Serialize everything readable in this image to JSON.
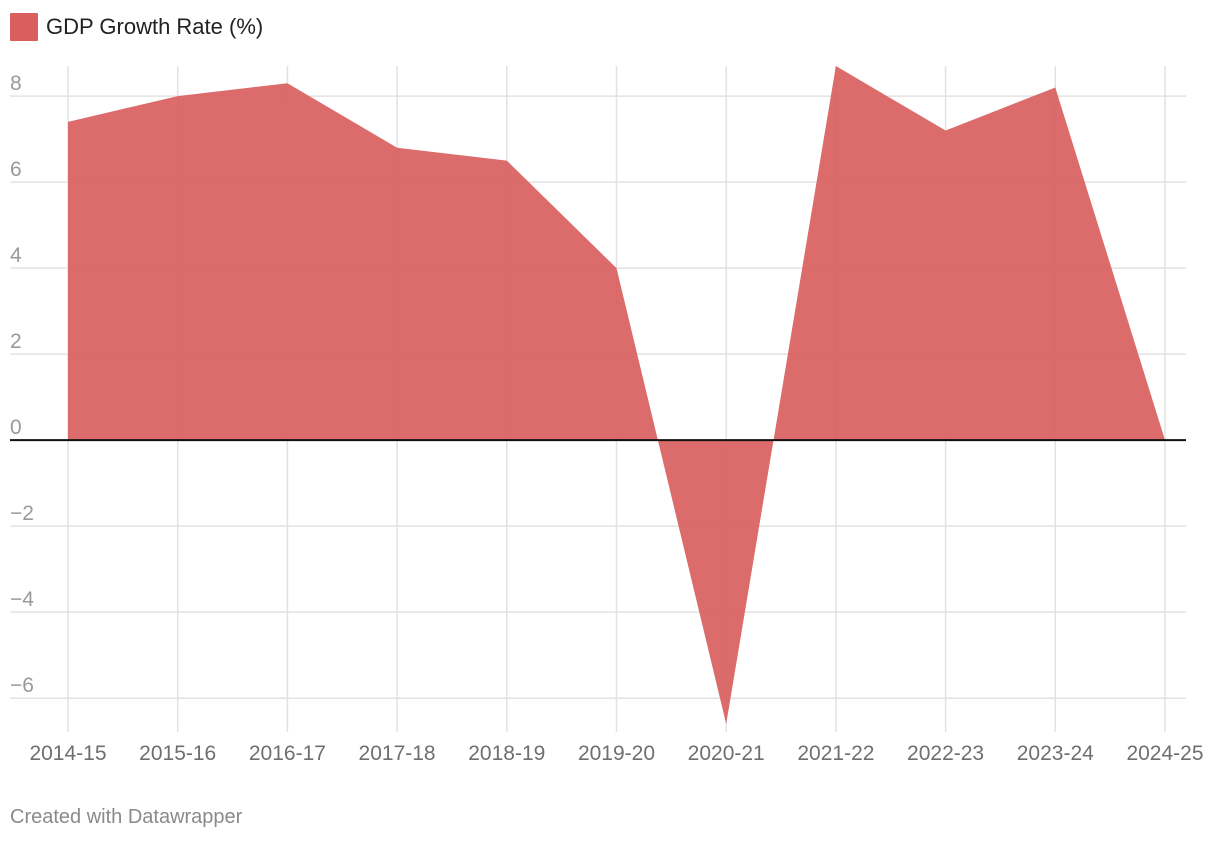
{
  "legend": {
    "label": "GDP Growth Rate (%)",
    "color": "#d95f5f"
  },
  "footer": {
    "credit": "Created with Datawrapper"
  },
  "chart_data": {
    "type": "area",
    "title": "",
    "xlabel": "",
    "ylabel": "",
    "categories": [
      "2014-15",
      "2015-16",
      "2016-17",
      "2017-18",
      "2018-19",
      "2019-20",
      "2020-21",
      "2021-22",
      "2022-23",
      "2023-24",
      "2024-25"
    ],
    "series": [
      {
        "name": "GDP Growth Rate (%)",
        "color": "#d95f5f",
        "values": [
          7.4,
          8.0,
          8.3,
          6.8,
          6.5,
          4.0,
          -6.6,
          8.7,
          7.2,
          8.2,
          0.0
        ]
      }
    ],
    "ylim": [
      -6.6,
      8.7
    ],
    "yticks": [
      8,
      6,
      4,
      2,
      0,
      -2,
      -4,
      -6
    ],
    "ytick_labels": [
      "8",
      "6",
      "4",
      "2",
      "0",
      "−2",
      "−4",
      "−6"
    ],
    "grid": true,
    "legend_position": "top-left"
  }
}
